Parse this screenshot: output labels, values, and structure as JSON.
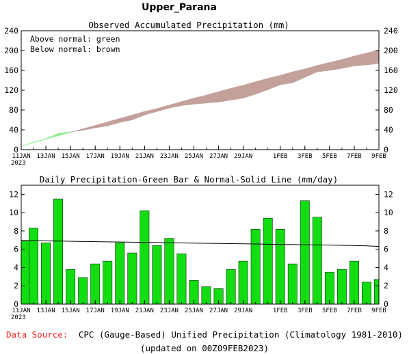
{
  "page_title": "Upper_Parana",
  "source": {
    "label": "Data Source:",
    "text": "CPC (Gauge-Based) Unified Precipitation (Climatology 1981-2010)",
    "updated": "(updated on 00Z09FEB2023)",
    "label_color": "#ff2020"
  },
  "chart_data": [
    {
      "type": "area",
      "title": "Observed Accumulated Precipitation (mm)",
      "legend_lines": [
        "Above normal: green",
        "Below normal: brown"
      ],
      "legend_placement": "top-left",
      "above_color": "#90ee90",
      "below_color": "#c4a09a",
      "x_tick_labels": [
        "11JAN",
        "13JAN",
        "15JAN",
        "17JAN",
        "19JAN",
        "21JAN",
        "23JAN",
        "25JAN",
        "27JAN",
        "29JAN",
        "1FEB",
        "3FEB",
        "5FEB",
        "7FEB",
        "9FEB"
      ],
      "x_tick_days": [
        0,
        2,
        4,
        6,
        8,
        10,
        12,
        14,
        16,
        18,
        21,
        23,
        25,
        27,
        29
      ],
      "year_label": "2023",
      "ylim": [
        0,
        240
      ],
      "yticks": [
        0,
        40,
        80,
        120,
        160,
        200,
        240
      ],
      "grid": false,
      "days": [
        0,
        1,
        2,
        3,
        4,
        5,
        6,
        7,
        8,
        9,
        10,
        11,
        12,
        13,
        14,
        15,
        16,
        17,
        18,
        19,
        20,
        21,
        22,
        23,
        24,
        25,
        26,
        27,
        28,
        29
      ],
      "observed": [
        7,
        15,
        22,
        33,
        36,
        39,
        44,
        48,
        55,
        60,
        70,
        77,
        84,
        89,
        92,
        94,
        96,
        100,
        104,
        112,
        121,
        131,
        135,
        146,
        157,
        160,
        164,
        169,
        171,
        174
      ],
      "normal": [
        7,
        14,
        21,
        28,
        35,
        42,
        49,
        56,
        63,
        70,
        77,
        83,
        90,
        97,
        104,
        110,
        117,
        124,
        130,
        137,
        144,
        150,
        157,
        163,
        170,
        176,
        182,
        189,
        195,
        201
      ]
    },
    {
      "type": "bar",
      "title": "Daily Precipitation-Green Bar & Normal-Solid Line (mm/day)",
      "bar_color": "#11dd11",
      "line_color": "#000000",
      "x_tick_labels": [
        "11JAN",
        "13JAN",
        "15JAN",
        "17JAN",
        "19JAN",
        "21JAN",
        "23JAN",
        "25JAN",
        "27JAN",
        "29JAN",
        "1FEB",
        "3FEB",
        "5FEB",
        "7FEB",
        "9FEB"
      ],
      "x_tick_days": [
        0,
        2,
        4,
        6,
        8,
        10,
        12,
        14,
        16,
        18,
        21,
        23,
        25,
        27,
        29
      ],
      "year_label": "2023",
      "ylim": [
        0,
        13
      ],
      "yticks": [
        0,
        2,
        4,
        6,
        8,
        10,
        12
      ],
      "grid": false,
      "days": [
        0,
        1,
        2,
        3,
        4,
        5,
        6,
        7,
        8,
        9,
        10,
        11,
        12,
        13,
        14,
        15,
        16,
        17,
        18,
        19,
        20,
        21,
        22,
        23,
        24,
        25,
        26,
        27,
        28,
        29
      ],
      "values": [
        6.9,
        8.3,
        6.7,
        11.5,
        3.8,
        2.9,
        4.4,
        4.7,
        6.7,
        5.6,
        10.2,
        6.4,
        7.2,
        5.5,
        2.6,
        1.9,
        1.7,
        3.8,
        4.7,
        8.2,
        9.4,
        8.2,
        4.4,
        11.3,
        9.5,
        3.5,
        3.8,
        4.7,
        2.4,
        2.7
      ],
      "normal": [
        6.95,
        6.93,
        6.91,
        6.89,
        6.87,
        6.85,
        6.83,
        6.81,
        6.79,
        6.77,
        6.75,
        6.73,
        6.71,
        6.69,
        6.67,
        6.65,
        6.63,
        6.61,
        6.59,
        6.57,
        6.55,
        6.53,
        6.51,
        6.49,
        6.47,
        6.45,
        6.43,
        6.41,
        6.37,
        6.3
      ]
    }
  ]
}
